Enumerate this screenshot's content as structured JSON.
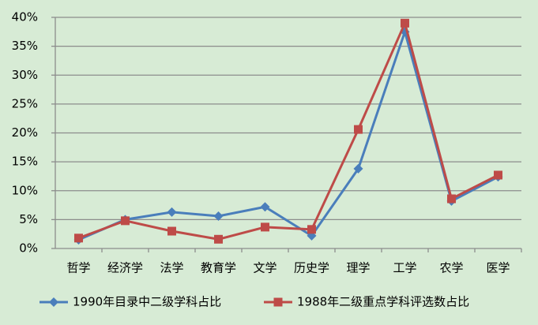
{
  "chart_data": {
    "type": "line",
    "categories": [
      "哲学",
      "经济学",
      "法学",
      "教育学",
      "文学",
      "历史学",
      "理学",
      "工学",
      "农学",
      "医学"
    ],
    "series": [
      {
        "name": "1990年目录中二级学科占比",
        "color": "#4a7ebb",
        "marker": "diamond",
        "values": [
          1.5,
          5.0,
          6.3,
          5.6,
          7.2,
          2.2,
          13.8,
          37.5,
          8.2,
          12.4
        ]
      },
      {
        "name": "1988年二级重点学科评选数占比",
        "color": "#be4b48",
        "marker": "square",
        "values": [
          1.8,
          4.8,
          3.0,
          1.6,
          3.7,
          3.3,
          20.6,
          39.0,
          8.6,
          12.7
        ]
      }
    ],
    "ylim": [
      0,
      40
    ],
    "yticks": [
      {
        "value": 0,
        "label": "0%"
      },
      {
        "value": 5,
        "label": "5%"
      },
      {
        "value": 10,
        "label": "10%"
      },
      {
        "value": 15,
        "label": "15%"
      },
      {
        "value": 20,
        "label": "20%"
      },
      {
        "value": 25,
        "label": "25%"
      },
      {
        "value": 30,
        "label": "30%"
      },
      {
        "value": 35,
        "label": "35%"
      },
      {
        "value": 40,
        "label": "40%"
      }
    ],
    "grid": true,
    "legend": "bottom"
  }
}
